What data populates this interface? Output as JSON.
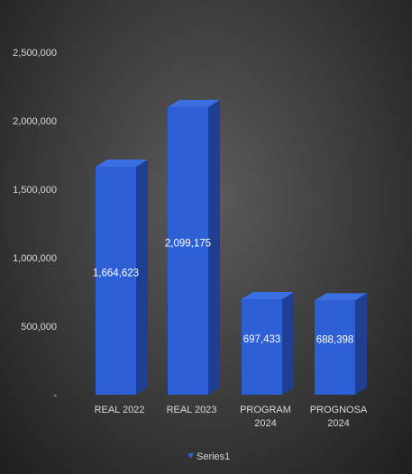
{
  "chart_data": {
    "type": "bar",
    "style": "3d-column",
    "categories": [
      [
        "REAL 2022"
      ],
      [
        "REAL 2023"
      ],
      [
        "PROGRAM",
        "2024"
      ],
      [
        "PROGNOSA",
        "2024"
      ]
    ],
    "series": [
      {
        "name": "Series1",
        "values": [
          1664623,
          2099175,
          697433,
          688398
        ],
        "data_labels": [
          "1,664,623",
          "2,099,175",
          "697,433",
          "688,398"
        ]
      }
    ],
    "y_ticks": [
      "-",
      "500,000",
      "1,000,000",
      "1,500,000",
      "2,000,000",
      "2,500,000"
    ],
    "y_tick_values": [
      0,
      500000,
      1000000,
      1500000,
      2000000,
      2500000
    ],
    "ylim": [
      0,
      2500000
    ],
    "grid": false,
    "legend": {
      "position": "bottom",
      "items": [
        "Series1"
      ]
    },
    "colors": {
      "bar_front": "#2d5fd6",
      "bar_top": "#3b6ee0",
      "bar_side": "#203f93",
      "text": "#d9d9d9",
      "data_label": "#ffffff"
    }
  }
}
